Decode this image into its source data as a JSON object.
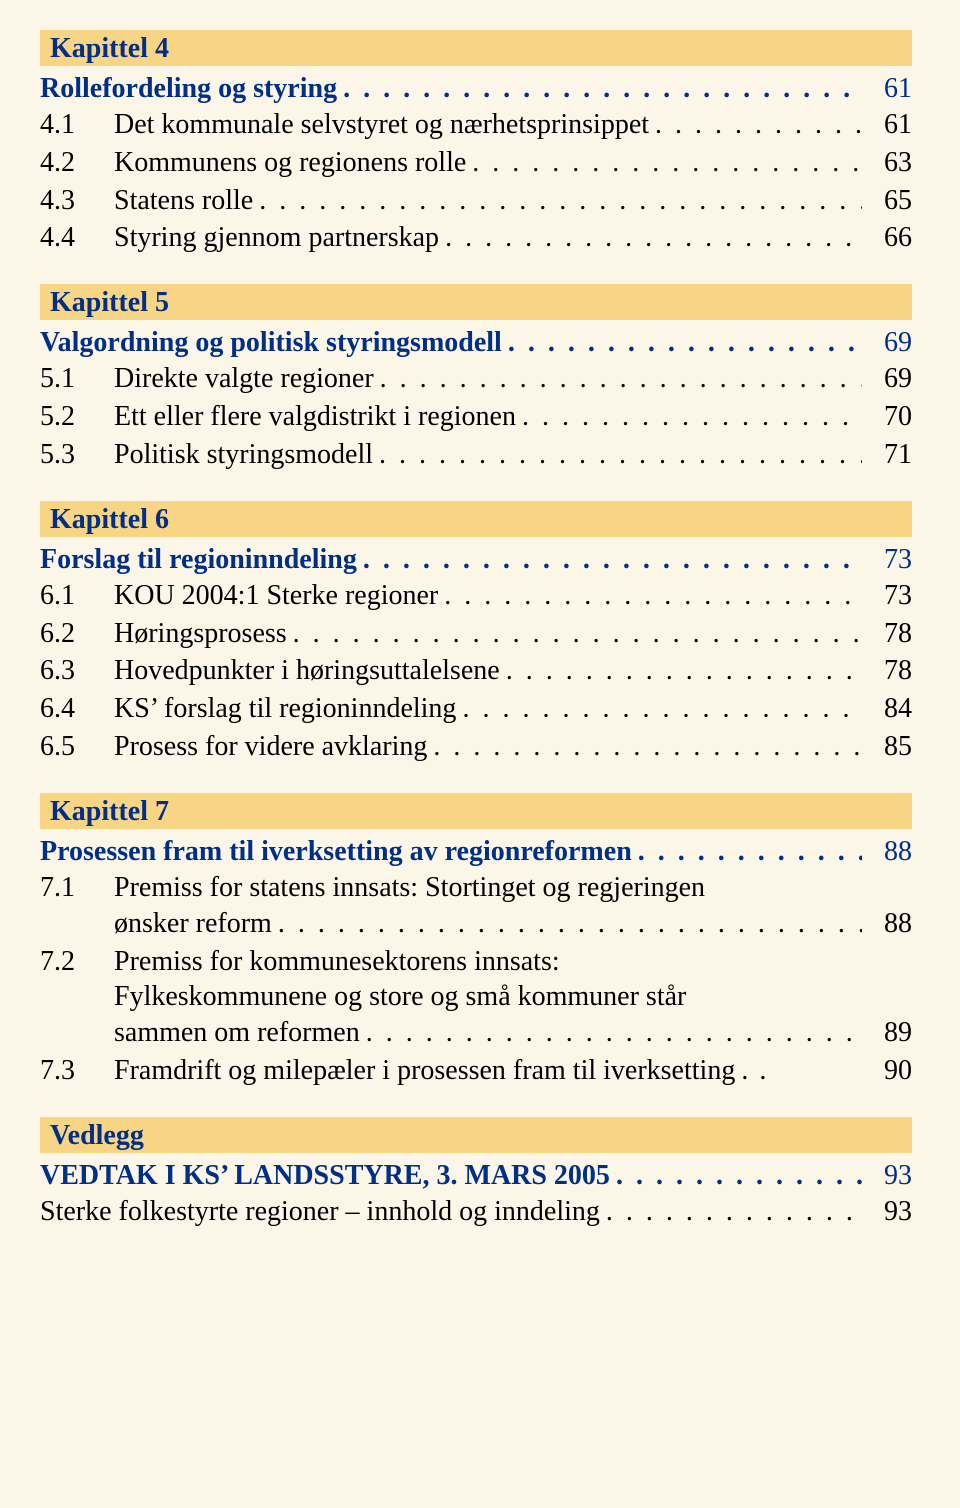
{
  "dotfill": ". . . . . . . . . . . . . . . . . . . . . . . . . . . . . . . . . . . . . . . . . . . . . . . . . . . . . . . . . . . .",
  "chapters": [
    {
      "label": "Kapittel 4",
      "title": "Rollefordeling og styring",
      "title_page": "61",
      "items": [
        {
          "num": "4.1",
          "text": "Det kommunale selvstyret og nærhetsprinsippet",
          "page": "61"
        },
        {
          "num": "4.2",
          "text": "Kommunens og regionens rolle",
          "page": "63"
        },
        {
          "num": "4.3",
          "text": "Statens rolle",
          "page": "65"
        },
        {
          "num": "4.4",
          "text": "Styring gjennom partnerskap",
          "page": "66"
        }
      ]
    },
    {
      "label": "Kapittel 5",
      "title": "Valgordning og politisk styringsmodell",
      "title_page": "69",
      "items": [
        {
          "num": "5.1",
          "text": "Direkte valgte regioner",
          "page": "69"
        },
        {
          "num": "5.2",
          "text": "Ett eller flere valgdistrikt i regionen",
          "page": "70"
        },
        {
          "num": "5.3",
          "text": "Politisk styringsmodell",
          "page": "71"
        }
      ]
    },
    {
      "label": "Kapittel 6",
      "title": "Forslag til regioninndeling",
      "title_page": "73",
      "items": [
        {
          "num": "6.1",
          "text": "KOU 2004:1 Sterke regioner",
          "page": "73"
        },
        {
          "num": "6.2",
          "text": "Høringsprosess",
          "page": "78"
        },
        {
          "num": "6.3",
          "text": "Hovedpunkter i høringsuttalelsene",
          "page": "78"
        },
        {
          "num": "6.4",
          "text": "KS’ forslag til regioninndeling",
          "page": "84"
        },
        {
          "num": "6.5",
          "text": "Prosess for videre avklaring",
          "page": "85"
        }
      ]
    },
    {
      "label": "Kapittel 7",
      "title": "Prosessen fram til iverksetting av regionreformen",
      "title_page": "88",
      "items_multi": [
        {
          "num": "7.1",
          "line1": "Premiss for statens innsats: Stortinget og regjeringen",
          "line2": "ønsker reform",
          "page": "88"
        },
        {
          "num": "7.2",
          "line1": "Premiss for kommunesektorens innsats:",
          "line2": "Fylkeskommunene og store og små kommuner står",
          "line3": "sammen om reformen",
          "page": "89"
        }
      ],
      "items_single_after": [
        {
          "num": "7.3",
          "text": "Framdrift og milepæler i prosessen fram til iverksetting",
          "page": "90",
          "tight": true
        }
      ]
    },
    {
      "label": "Vedlegg",
      "title": "VEDTAK I KS’ LANDSSTYRE, 3. MARS 2005",
      "title_page": "93",
      "items": [
        {
          "num": "",
          "text": "Sterke folkestyrte regioner – innhold og inndeling",
          "page": "93",
          "nonum": true
        }
      ]
    }
  ]
}
